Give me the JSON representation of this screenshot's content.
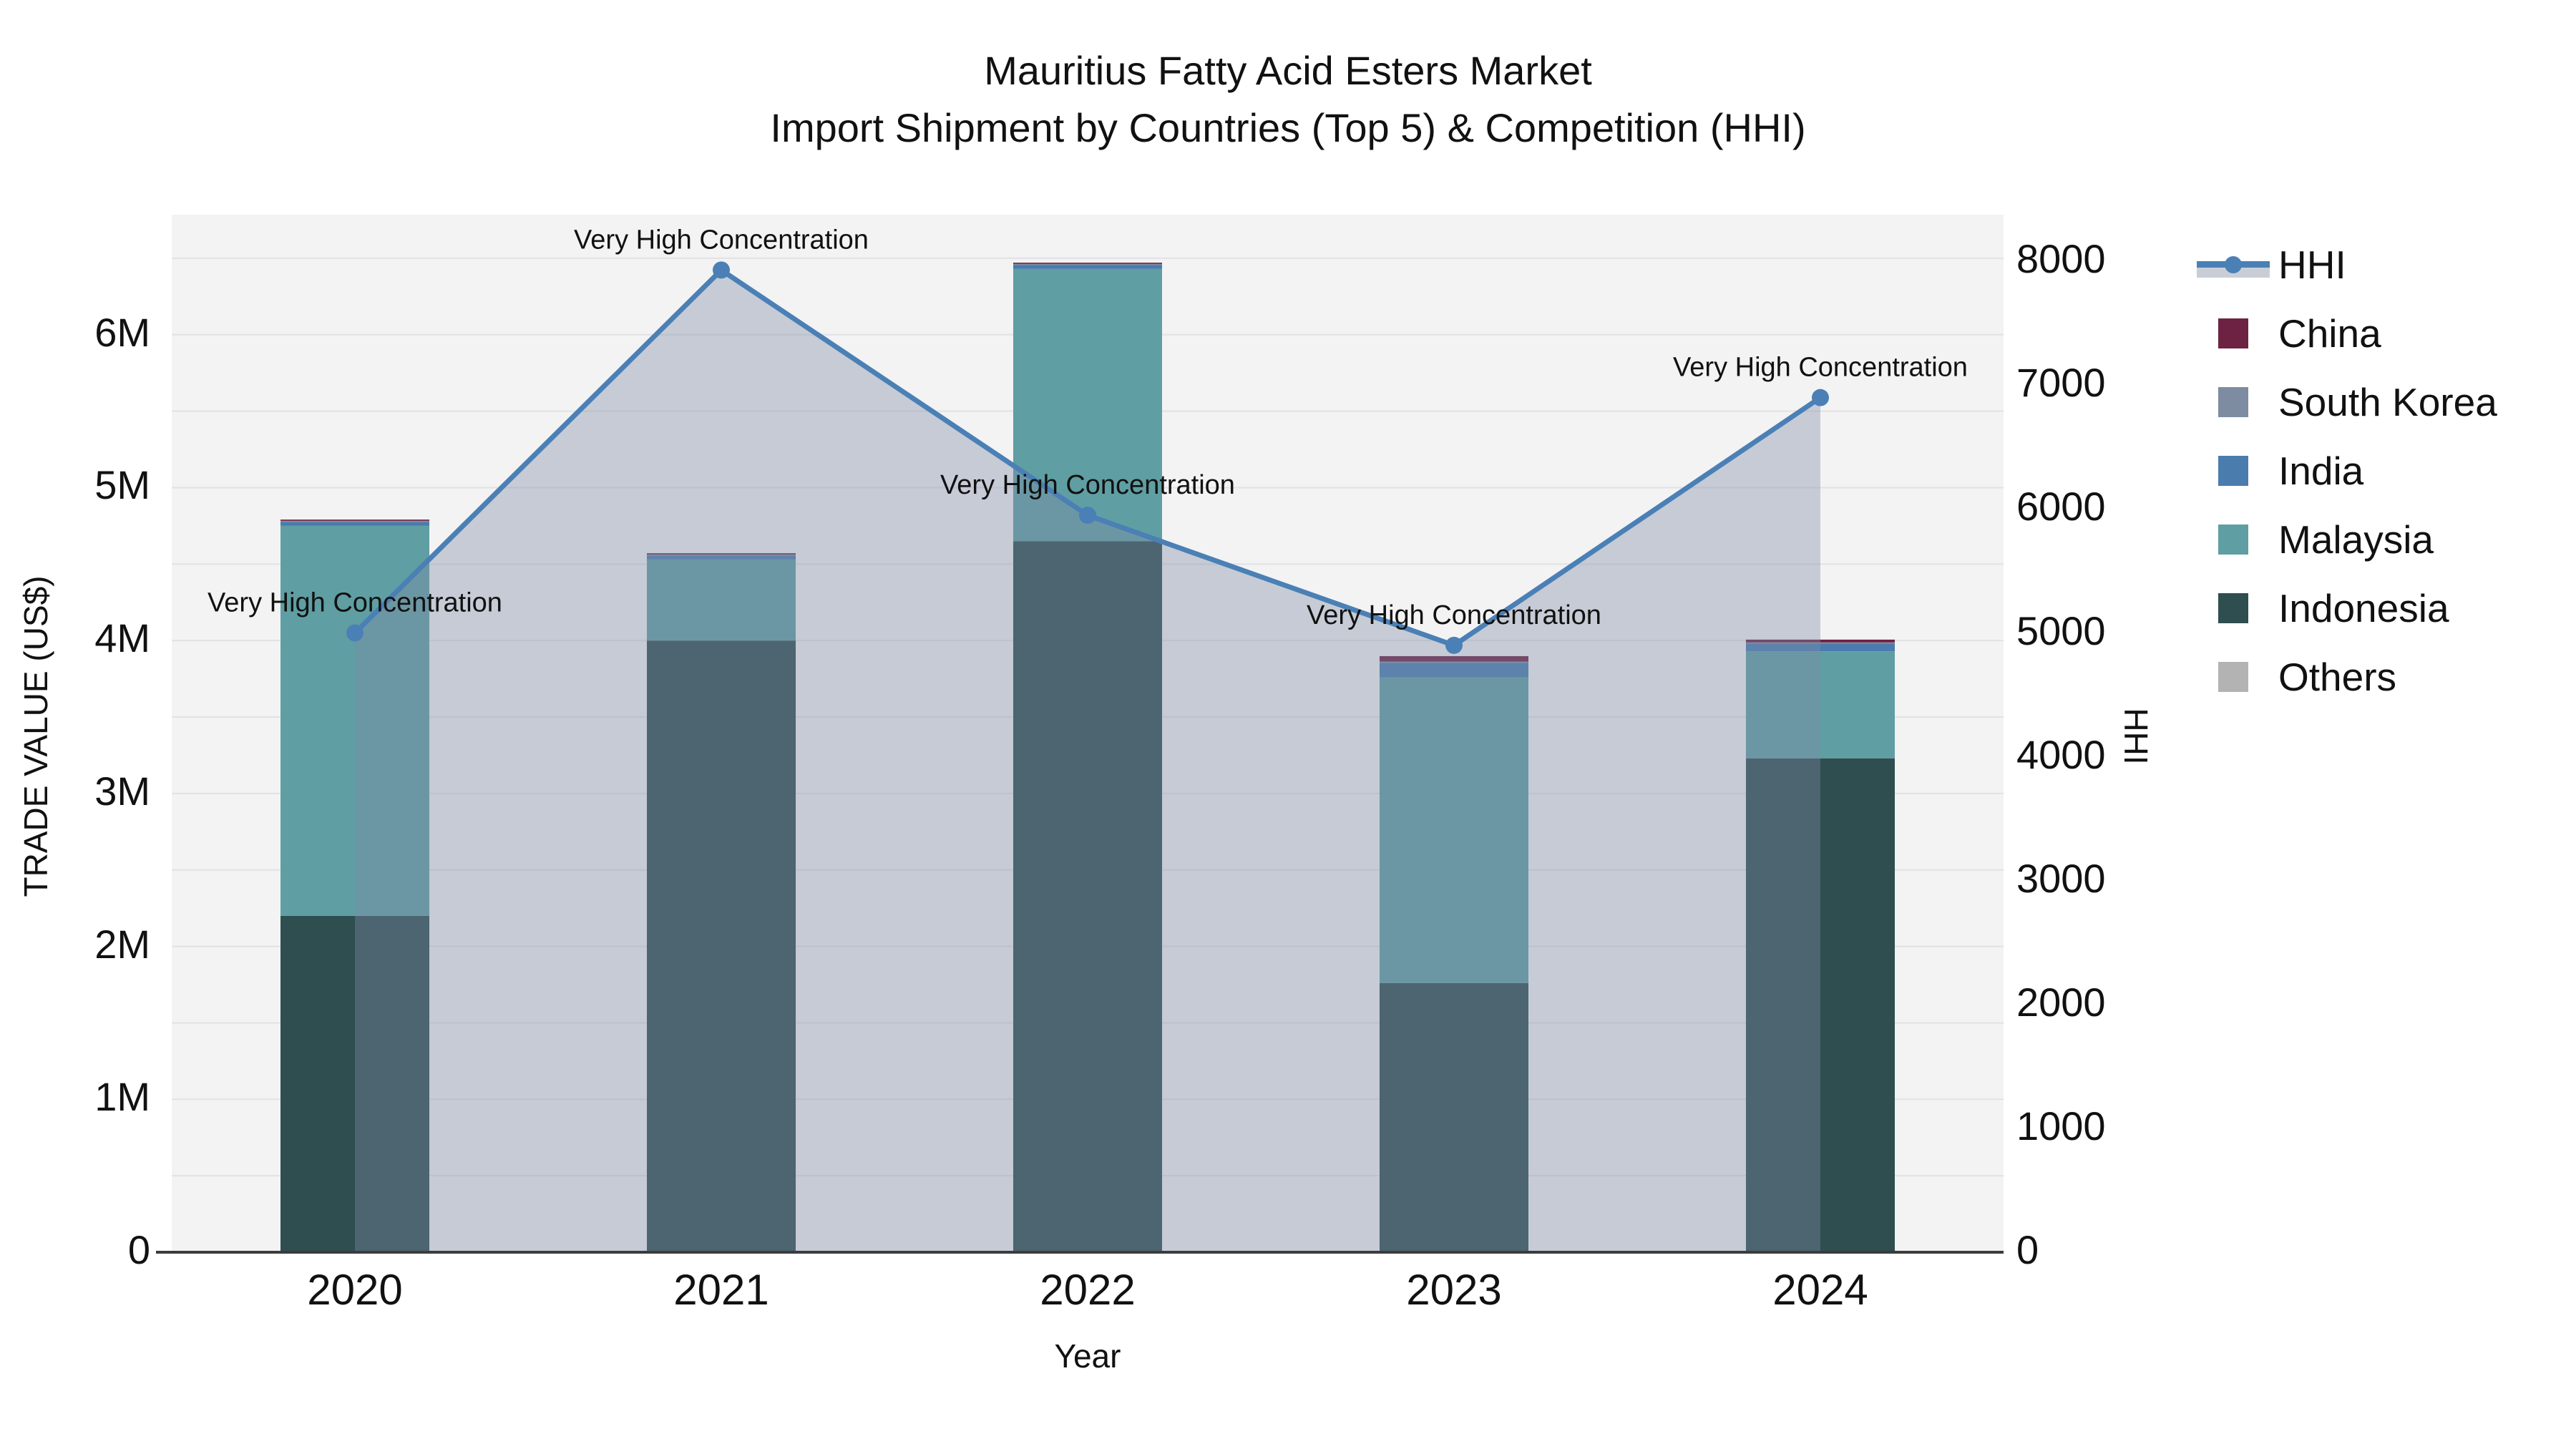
{
  "title": {
    "line1": "Mauritius Fatty Acid Esters Market",
    "line2": "Import Shipment by Countries (Top 5) & Competition (HHI)"
  },
  "axes": {
    "x_title": "Year",
    "y_left_title": "TRADE VALUE (US$)",
    "y_right_title": "HHI",
    "y_left_tick_labels": [
      "0",
      "1M",
      "2M",
      "3M",
      "4M",
      "5M",
      "6M"
    ],
    "y_right_tick_labels": [
      "0",
      "1000",
      "2000",
      "3000",
      "4000",
      "5000",
      "6000",
      "7000",
      "8000"
    ]
  },
  "colors": {
    "plot_background": "#f3f3f4",
    "gridline": "#e2e2e6",
    "axis_line": "#3c3c3c",
    "hhi_line": "#4a80b5",
    "hhi_area_fill": "rgba(125,140,165,0.38)",
    "china": "#6e2243",
    "south_korea": "#7d8ca0",
    "india": "#4a7cae",
    "malaysia": "#5f9ea3",
    "indonesia": "#2e4e4f",
    "others": "#b3b3b3"
  },
  "legend": [
    {
      "label": "HHI",
      "type": "line",
      "color": "#4a80b5"
    },
    {
      "label": "China",
      "type": "square",
      "color": "#6e2243"
    },
    {
      "label": "South Korea",
      "type": "square",
      "color": "#7d8ca0"
    },
    {
      "label": "India",
      "type": "square",
      "color": "#4a7cae"
    },
    {
      "label": "Malaysia",
      "type": "square",
      "color": "#5f9ea3"
    },
    {
      "label": "Indonesia",
      "type": "square",
      "color": "#2e4e4f"
    },
    {
      "label": "Others",
      "type": "square",
      "color": "#b3b3b3"
    }
  ],
  "chart_data": {
    "type": "combo_stacked_bar_and_area_line",
    "categories": [
      "2020",
      "2021",
      "2022",
      "2023",
      "2024"
    ],
    "bar_unit": "US$",
    "series": [
      {
        "name": "Indonesia",
        "color": "#2e4e4f",
        "values": [
          2200000,
          4000000,
          4650000,
          1760000,
          3230000
        ]
      },
      {
        "name": "Malaysia",
        "color": "#5f9ea3",
        "values": [
          2550000,
          530000,
          1780000,
          2000000,
          700000
        ]
      },
      {
        "name": "India",
        "color": "#4a7cae",
        "values": [
          25000,
          25000,
          25000,
          95000,
          50000
        ]
      },
      {
        "name": "South Korea",
        "color": "#7d8ca0",
        "values": [
          8000,
          8000,
          8000,
          8000,
          8000
        ]
      },
      {
        "name": "China",
        "color": "#6e2243",
        "values": [
          8000,
          8000,
          8000,
          35000,
          18000
        ]
      },
      {
        "name": "Others",
        "color": "#b3b3b3",
        "values": [
          0,
          0,
          0,
          0,
          0
        ]
      }
    ],
    "hhi": {
      "name": "HHI",
      "values": [
        5000,
        7930,
        5950,
        4900,
        6900
      ],
      "annotations": [
        "Very High Concentration",
        "Very High Concentration",
        "Very High Concentration",
        "Very High Concentration",
        "Very High Concentration"
      ]
    },
    "xlabel": "Year",
    "ylabel_left": "TRADE VALUE (US$)",
    "ylabel_right": "HHI",
    "ylim_left": [
      0,
      6785000
    ],
    "ylim_right": [
      0,
      8377
    ],
    "grid": true,
    "legend_position": "right"
  }
}
